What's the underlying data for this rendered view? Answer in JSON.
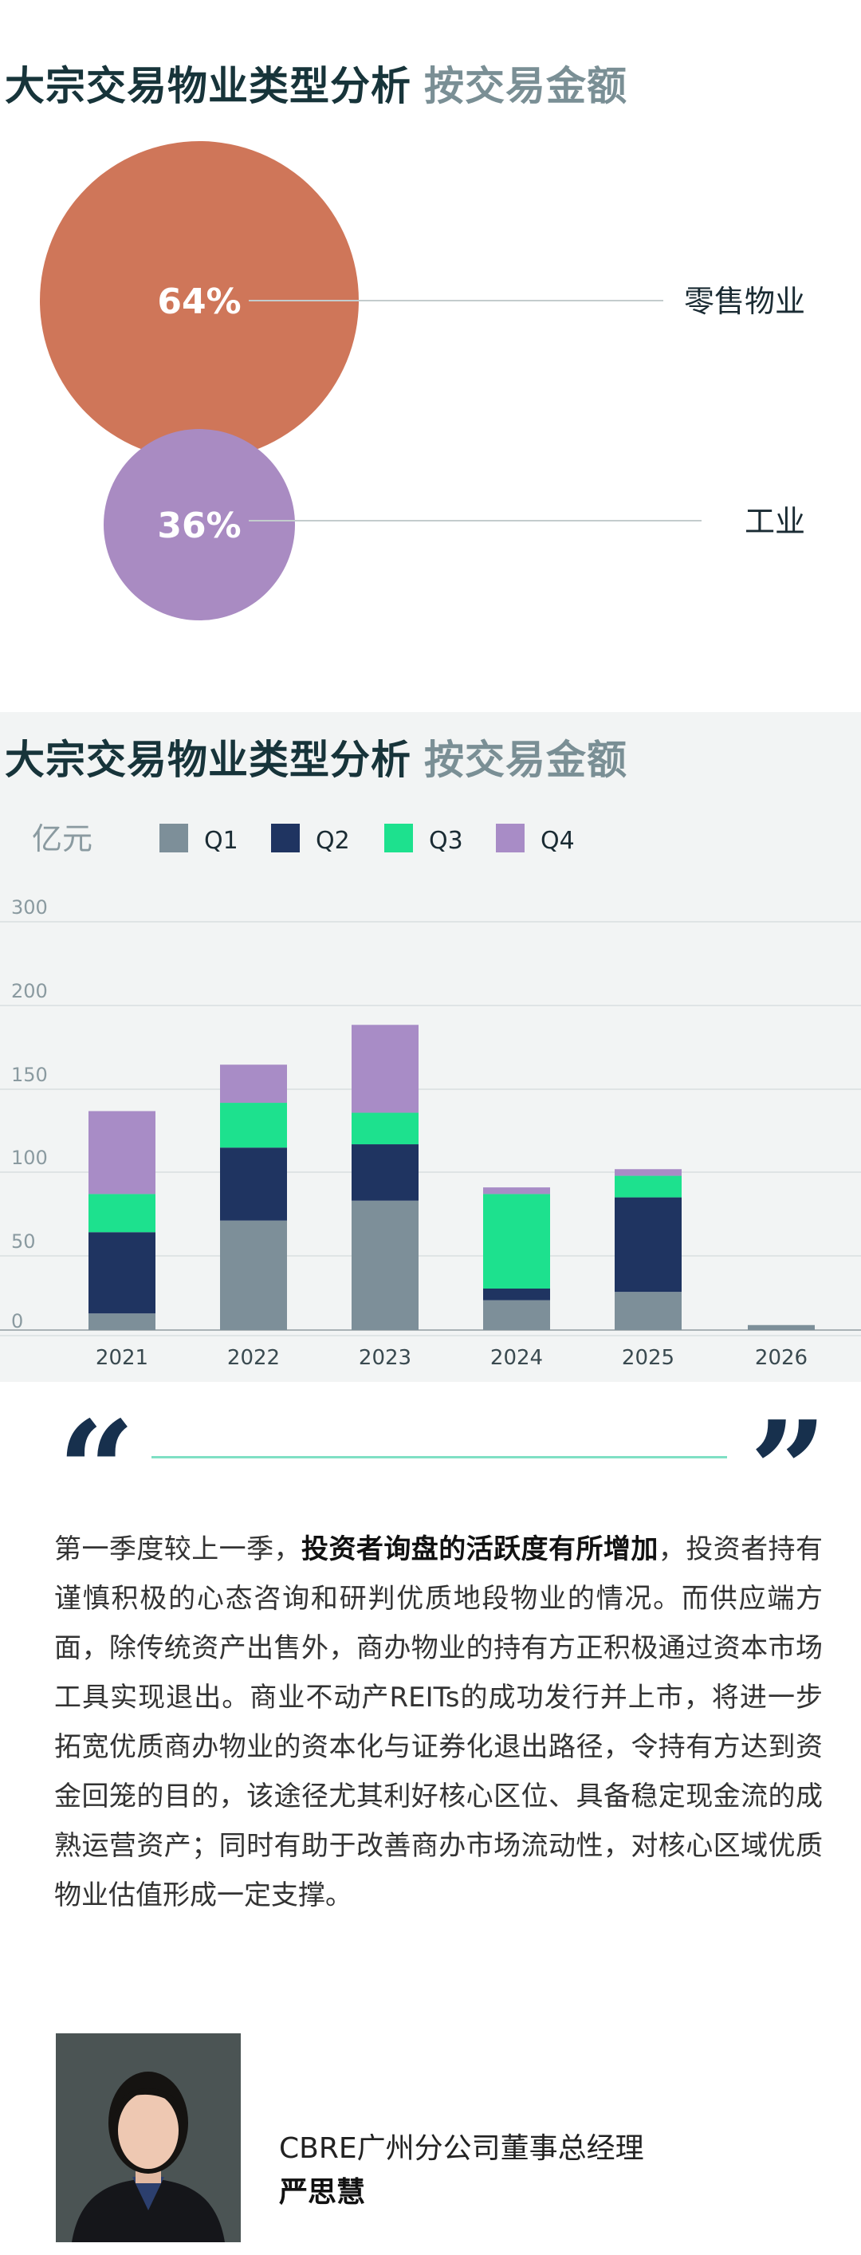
{
  "pie": {
    "title_main": "大宗交易物业类型分析",
    "title_sub": "按交易金额",
    "chart_data": {
      "type": "pie",
      "categories": [
        "零售物业",
        "工业"
      ],
      "values": [
        64,
        36
      ],
      "value_labels": [
        "64%",
        "36%"
      ],
      "colors": [
        "#cf7659",
        "#a98bc2"
      ]
    }
  },
  "bar": {
    "title_main": "大宗交易物业类型分析",
    "title_sub": "按交易金额",
    "unit": "亿元",
    "chart_data": {
      "type": "bar",
      "stacked": true,
      "categories": [
        "2021",
        "2022",
        "2023",
        "2024",
        "2025",
        "2026"
      ],
      "series": [
        {
          "name": "Q1",
          "color": "#7d8f99",
          "values": [
            10,
            66,
            78,
            18,
            23,
            3
          ]
        },
        {
          "name": "Q2",
          "color": "#1f3461",
          "values": [
            49,
            44,
            34,
            7,
            57,
            0
          ]
        },
        {
          "name": "Q3",
          "color": "#1de18e",
          "values": [
            23,
            27,
            19,
            57,
            13,
            0
          ]
        },
        {
          "name": "Q4",
          "color": "#a88cc6",
          "values": [
            50,
            23,
            53,
            4,
            4,
            0
          ]
        }
      ],
      "yticks": [
        "0",
        "50",
        "100",
        "150",
        "200",
        "300"
      ],
      "ylim": [
        0,
        300
      ],
      "grid": true,
      "legend": "top"
    }
  },
  "quote": {
    "paragraph_pre": "第一季度较上一季，",
    "paragraph_bold": "投资者询盘的活跃度有所增加",
    "paragraph_post": "，投资者持有谨慎积极的心态咨询和研判优质地段物业的情况。而供应端方面，除传统资产出售外，商办物业的持有方正积极通过资本市场工具实现退出。商业不动产REITs的成功发行并上市，将进一步拓宽优质商办物业的资本化与证券化退出路径，令持有方达到资金回笼的目的，该途径尤其利好核心区位、具备稳定现金流的成熟运营资产；同时有助于改善商办市场流动性，对核心区域优质物业估值形成一定支撑。",
    "role": "CBRE广州分公司董事总经理",
    "name": "严思慧"
  }
}
